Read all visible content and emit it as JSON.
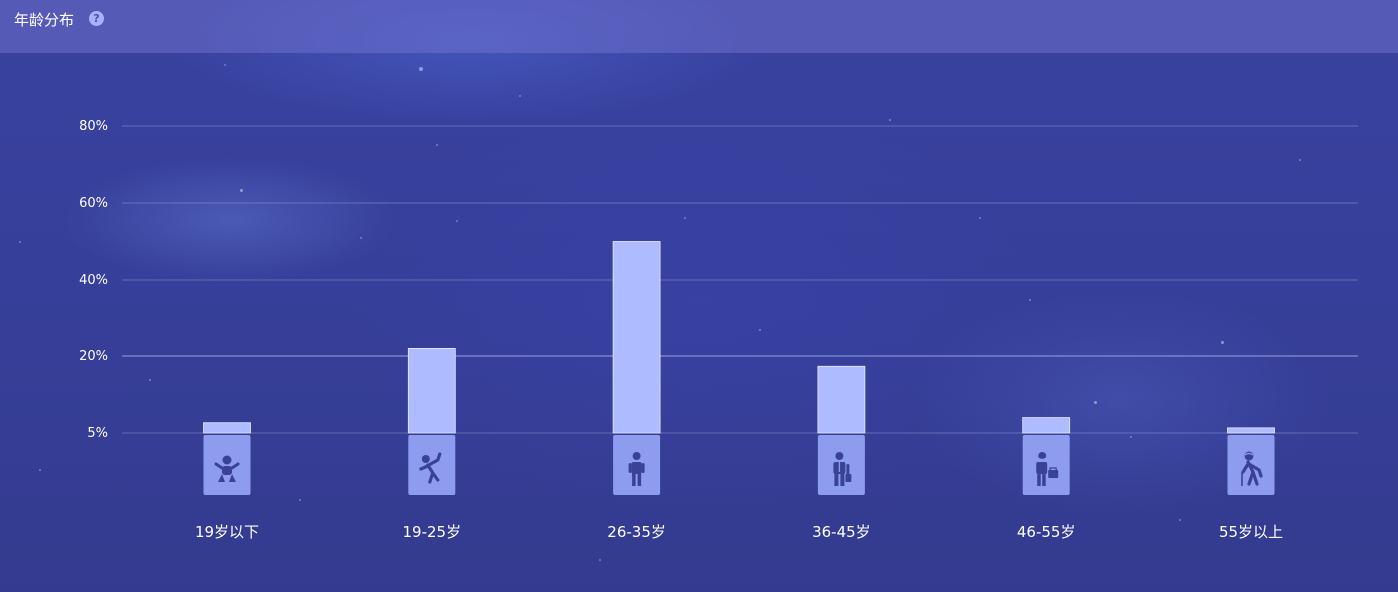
{
  "header": {
    "title": "年龄分布",
    "help_icon": "?"
  },
  "colors": {
    "background": "#373f95",
    "bar": "#aebcff",
    "icon_box": "#8e9cf0",
    "icon": "#3a4296",
    "grid": "#8f96d4"
  },
  "chart_data": {
    "type": "bar",
    "categories": [
      "19岁以下",
      "19-25岁",
      "26-35岁",
      "36-45岁",
      "46-55岁",
      "55岁以上"
    ],
    "values": [
      7,
      22,
      50,
      18,
      8,
      6
    ],
    "ytick_values": [
      5,
      20,
      40,
      60,
      80
    ],
    "ytick_labels": [
      "5%",
      "20%",
      "40%",
      "60%",
      "80%"
    ],
    "icons": [
      "baby-icon",
      "child-icon",
      "young-adult-icon",
      "businessman-icon",
      "middle-aged-icon",
      "elderly-icon"
    ],
    "grid": true,
    "title": ""
  }
}
